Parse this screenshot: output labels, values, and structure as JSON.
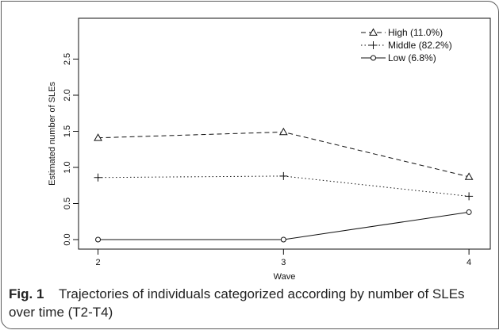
{
  "chart_data": {
    "type": "line",
    "x": [
      2,
      3,
      4
    ],
    "xticks": [
      "2",
      "3",
      "4"
    ],
    "xlabel": "Wave",
    "ylabel": "Estimated number of SLEs",
    "yticks": [
      "0.0",
      "0.5",
      "1.0",
      "1.5",
      "2.0",
      "2.5"
    ],
    "ylim": [
      0,
      2.5
    ],
    "legend_position": "top-right",
    "grid": false,
    "series": [
      {
        "name": "High (11.0%)",
        "values": [
          1.41,
          1.49,
          0.87
        ],
        "line_style": "dashed",
        "marker": "triangle"
      },
      {
        "name": "Middle (82.2%)",
        "values": [
          0.86,
          0.88,
          0.6
        ],
        "line_style": "dotted",
        "marker": "plus"
      },
      {
        "name": "Low (6.8%)",
        "values": [
          0.0,
          0.0,
          0.38
        ],
        "line_style": "solid",
        "marker": "circle"
      }
    ]
  },
  "caption": {
    "label": "Fig. 1",
    "text": "Trajectories of individuals categorized according by number of SLEs over time (T2-T4)"
  }
}
